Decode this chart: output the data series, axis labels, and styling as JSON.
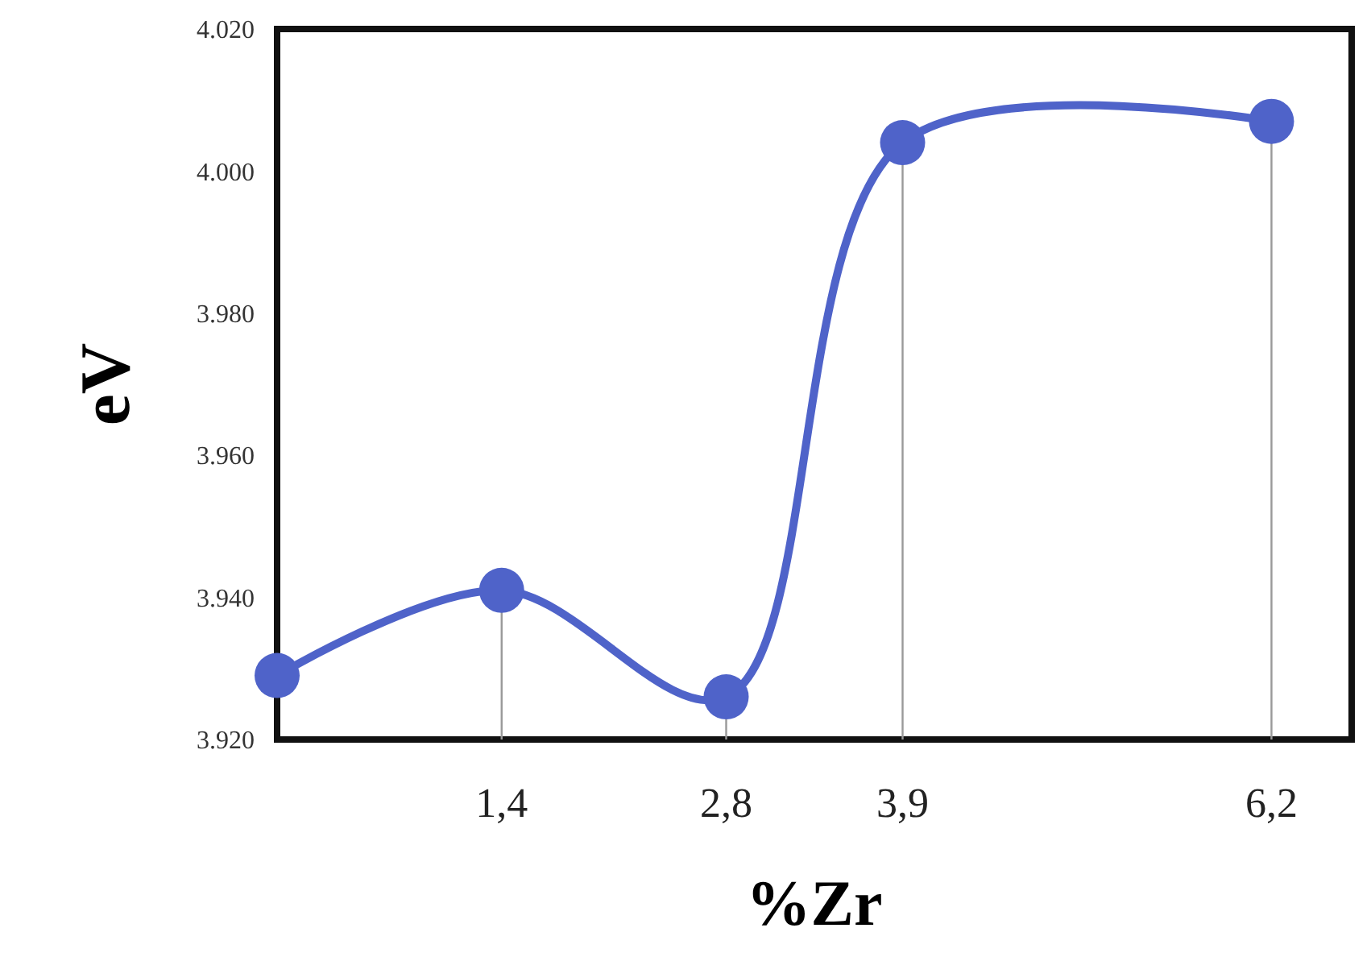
{
  "chart_data": {
    "type": "line",
    "xlabel": "%Zr",
    "ylabel": "eV",
    "x": [
      0,
      1.4,
      2.8,
      3.9,
      6.2
    ],
    "series": [
      {
        "color": "#4f63c9",
        "values": [
          3929,
          3941,
          3926,
          4004,
          4007
        ],
        "errors": [
          null,
          [
            3920,
            3941
          ],
          [
            3920,
            3926
          ],
          null,
          null
        ]
      }
    ],
    "xlim": [
      0,
      6.7
    ],
    "xticks": [
      {
        "value": 1.4,
        "label": "1,4"
      },
      {
        "value": 2.8,
        "label": "2,8"
      },
      {
        "value": 3.9,
        "label": "3,9"
      },
      {
        "value": 6.2,
        "label": "6,2"
      }
    ],
    "ylim": [
      3920,
      4020
    ],
    "yticks": [
      {
        "value": 3920,
        "label": "3.920"
      },
      {
        "value": 3940,
        "label": "3.940"
      },
      {
        "value": 3960,
        "label": "3.960"
      },
      {
        "value": 3980,
        "label": "3.980"
      },
      {
        "value": 4000,
        "label": "4.000"
      },
      {
        "value": 4020,
        "label": "4.020"
      }
    ],
    "grid": "x",
    "marker": "circle",
    "line_style": "solid"
  }
}
